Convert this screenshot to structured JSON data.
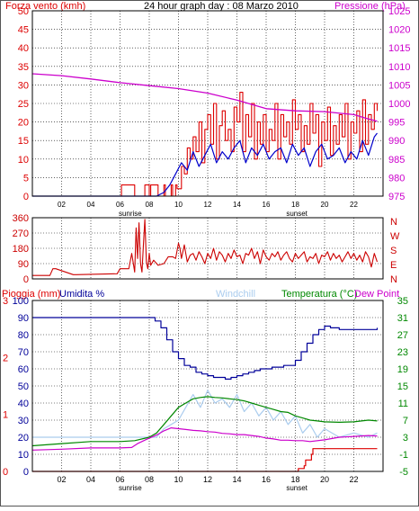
{
  "title": "24 hour graph day : 08 Marzo 2010",
  "colors": {
    "wind": "#dd0000",
    "gust": "#dd0000",
    "avgwind": "#0000cc",
    "pressure": "#cc00cc",
    "direction": "#cc0000",
    "rain": "#dd0000",
    "humidity": "#000099",
    "windchill": "#aaccee",
    "temperature": "#008800",
    "dewpoint": "#cc00cc",
    "grid": "#000000",
    "frame": "#000000",
    "background": "#ffffff"
  },
  "chart_data": [
    {
      "type": "line",
      "panel": "wind_pressure",
      "left_label": "Forza vento (kmh)",
      "right_label": "Pressione (hPa)",
      "x_ticks": [
        "02",
        "04",
        "06",
        "08",
        "10",
        "12",
        "14",
        "16",
        "18",
        "20",
        "22"
      ],
      "x_ticks_at": [
        2,
        4,
        6,
        8,
        10,
        12,
        14,
        16,
        18,
        20,
        22
      ],
      "xlim": [
        0,
        24
      ],
      "ylim": [
        0,
        50
      ],
      "y_ticks": [
        0,
        5,
        10,
        15,
        20,
        25,
        30,
        35,
        40,
        45,
        50
      ],
      "y2lim": [
        975,
        1025
      ],
      "y2_ticks": [
        975,
        980,
        985,
        990,
        995,
        1000,
        1005,
        1010,
        1015,
        1020,
        1025
      ],
      "markers": [
        {
          "label": "sunrise",
          "x": 6.7
        },
        {
          "label": "sunset",
          "x": 18.1
        }
      ],
      "series": [
        {
          "role": "gust",
          "axis": "left",
          "x": [
            0,
            6.0,
            6.1,
            6.9,
            7.0,
            7.6,
            7.7,
            8.0,
            8.1,
            8.5,
            8.6,
            9.0,
            9.1,
            9.5,
            9.6,
            9.8,
            9.9,
            10.2,
            10.4,
            10.6,
            10.8,
            11.0,
            11.2,
            11.4,
            11.6,
            11.8,
            12.0,
            12.2,
            12.4,
            12.6,
            12.8,
            13.0,
            13.2,
            13.4,
            13.6,
            13.8,
            14.0,
            14.2,
            14.4,
            14.6,
            14.8,
            15.0,
            15.2,
            15.4,
            15.6,
            15.8,
            16.0,
            16.2,
            16.4,
            16.6,
            16.8,
            17.0,
            17.2,
            17.4,
            17.6,
            17.8,
            18.0,
            18.2,
            18.4,
            18.6,
            18.8,
            19.0,
            19.2,
            19.4,
            19.6,
            19.8,
            20.0,
            20.2,
            20.4,
            20.6,
            20.8,
            21.0,
            21.2,
            21.4,
            21.6,
            21.8,
            22.0,
            22.2,
            22.4,
            22.6,
            22.8,
            23.0,
            23.2,
            23.4,
            23.6
          ],
          "y": [
            0,
            0,
            3,
            3,
            0,
            0,
            3,
            0,
            3,
            3,
            0,
            3,
            0,
            3,
            0,
            3,
            2,
            8,
            6,
            13,
            10,
            16,
            12,
            20,
            9,
            18,
            22,
            14,
            25,
            10,
            19,
            23,
            15,
            18,
            12,
            24,
            20,
            28,
            12,
            22,
            16,
            25,
            10,
            20,
            14,
            22,
            12,
            18,
            15,
            25,
            10,
            22,
            16,
            20,
            14,
            26,
            18,
            22,
            12,
            19,
            14,
            25,
            17,
            22,
            8,
            20,
            15,
            24,
            11,
            19,
            14,
            22,
            16,
            25,
            10,
            20,
            17,
            23,
            12,
            26,
            14,
            22,
            18,
            25,
            23
          ]
        },
        {
          "role": "average_wind",
          "axis": "left",
          "x": [
            0,
            8.5,
            9.0,
            9.4,
            9.8,
            10.2,
            10.6,
            11.0,
            11.4,
            11.8,
            12.2,
            12.6,
            13.0,
            13.4,
            13.8,
            14.2,
            14.6,
            15.0,
            15.4,
            15.8,
            16.2,
            16.6,
            17.0,
            17.4,
            17.8,
            18.2,
            18.6,
            19.0,
            19.4,
            19.8,
            20.2,
            20.6,
            21.0,
            21.4,
            21.8,
            22.2,
            22.6,
            23.0,
            23.4,
            23.6
          ],
          "y": [
            0,
            0,
            1,
            3,
            6,
            9,
            7,
            12,
            8,
            11,
            14,
            9,
            12,
            10,
            13,
            15,
            9,
            13,
            11,
            14,
            10,
            12,
            13,
            9,
            14,
            11,
            13,
            8,
            12,
            14,
            10,
            11,
            13,
            9,
            12,
            10,
            15,
            11,
            16,
            17
          ]
        },
        {
          "role": "pressure",
          "axis": "right",
          "x": [
            0,
            2,
            4,
            6,
            8,
            10,
            12,
            14,
            16,
            18,
            20,
            22,
            23,
            23.6
          ],
          "y": [
            1008,
            1007.5,
            1006.6,
            1005.6,
            1004.8,
            1004,
            1002.8,
            1000.9,
            998.6,
            998,
            997.8,
            997,
            995.8,
            995.2
          ]
        }
      ]
    },
    {
      "type": "line",
      "panel": "wind_direction",
      "right_labels": [
        "N",
        "W",
        "S",
        "E",
        "N"
      ],
      "ylim": [
        0,
        360
      ],
      "y_ticks": [
        0,
        90,
        180,
        270,
        360
      ],
      "tick_labels": [
        "0",
        "90",
        "180",
        "270",
        "360"
      ],
      "xlim": [
        0,
        24
      ],
      "series": [
        {
          "role": "direction",
          "x": [
            0,
            1.2,
            1.4,
            1.6,
            2.8,
            3.0,
            5.8,
            6.0,
            6.6,
            6.8,
            7.0,
            7.1,
            7.2,
            7.3,
            7.4,
            7.5,
            7.6,
            7.7,
            7.8,
            7.9,
            8.0,
            8.1,
            8.3,
            8.6,
            9.0,
            9.3,
            9.6,
            9.8,
            10.0,
            10.1,
            10.2,
            10.4,
            10.5,
            10.6,
            10.8,
            11.0,
            11.2,
            11.4,
            11.6,
            11.8,
            12.0,
            12.2,
            12.4,
            12.6,
            12.8,
            13.0,
            13.2,
            13.4,
            13.6,
            13.8,
            14.0,
            14.2,
            14.4,
            14.6,
            14.8,
            15.0,
            15.2,
            15.4,
            15.6,
            15.8,
            16.0,
            16.2,
            16.4,
            16.6,
            16.8,
            17.0,
            17.2,
            17.4,
            17.6,
            17.8,
            18.0,
            18.2,
            18.4,
            18.6,
            18.8,
            19.0,
            19.2,
            19.4,
            19.6,
            19.8,
            20.0,
            20.2,
            20.4,
            20.6,
            20.8,
            21.0,
            21.2,
            21.4,
            21.6,
            21.8,
            22.0,
            22.2,
            22.4,
            22.6,
            22.8,
            23.0,
            23.2,
            23.4,
            23.6
          ],
          "y": [
            20,
            20,
            60,
            60,
            25,
            25,
            30,
            60,
            60,
            150,
            40,
            300,
            120,
            330,
            90,
            40,
            200,
            350,
            100,
            60,
            150,
            80,
            110,
            80,
            90,
            130,
            130,
            120,
            210,
            180,
            120,
            200,
            150,
            100,
            140,
            150,
            110,
            160,
            130,
            90,
            150,
            120,
            180,
            110,
            160,
            140,
            100,
            150,
            120,
            170,
            130,
            140,
            90,
            150,
            140,
            180,
            120,
            160,
            90,
            170,
            130,
            110,
            150,
            130,
            160,
            110,
            140,
            160,
            120,
            100,
            150,
            120,
            140,
            160,
            100,
            130,
            120,
            150,
            90,
            140,
            130,
            160,
            110,
            150,
            120,
            140,
            100,
            130,
            160,
            120,
            150,
            110,
            140,
            100,
            160,
            130,
            70,
            150,
            100
          ]
        }
      ]
    },
    {
      "type": "line",
      "panel": "rain_humidity_temperature",
      "labels": {
        "rain": "Pioggia (mm)",
        "humidity": "Umidita %",
        "windchill": "Windchill",
        "temperature": "Temperatura (°C)",
        "dewpoint": "Dew Point"
      },
      "rain_ticks": [
        0,
        1,
        2,
        3
      ],
      "rain_ylim": [
        0,
        3
      ],
      "humidity_ticks": [
        0,
        10,
        20,
        30,
        40,
        50,
        60,
        70,
        80,
        90,
        100
      ],
      "humidity_ylim": [
        0,
        100
      ],
      "temp_ticks": [
        -5,
        -1,
        3,
        7,
        11,
        15,
        19,
        23,
        27,
        31,
        35
      ],
      "temp_ylim": [
        -5,
        35
      ],
      "xlim": [
        0,
        24
      ],
      "x_ticks": [
        "02",
        "04",
        "06",
        "08",
        "10",
        "12",
        "14",
        "16",
        "18",
        "20",
        "22"
      ],
      "x_ticks_at": [
        2,
        4,
        6,
        8,
        10,
        12,
        14,
        16,
        18,
        20,
        22
      ],
      "markers": [
        {
          "label": "sunrise",
          "x": 6.7
        },
        {
          "label": "sunset",
          "x": 18.1
        }
      ],
      "series": [
        {
          "role": "rain",
          "axis": "rain",
          "x": [
            0,
            18.1,
            18.2,
            18.6,
            18.7,
            19.1,
            19.2,
            23.6
          ],
          "y": [
            0,
            0,
            0.05,
            0.1,
            0.2,
            0.3,
            0.4,
            0.4
          ]
        },
        {
          "role": "humidity",
          "axis": "humidity",
          "x": [
            0,
            8.0,
            8.4,
            8.8,
            9.2,
            9.6,
            10.0,
            10.4,
            10.8,
            11.2,
            11.6,
            12.0,
            12.4,
            12.8,
            13.2,
            13.6,
            14.0,
            14.4,
            14.8,
            15.2,
            15.6,
            16.0,
            16.4,
            16.8,
            17.2,
            17.6,
            18.0,
            18.4,
            18.8,
            19.2,
            19.6,
            20.0,
            20.4,
            21.0,
            22.0,
            23.0,
            23.6
          ],
          "y": [
            90,
            90,
            88,
            84,
            77,
            70,
            66,
            62,
            61,
            58,
            57,
            56,
            55,
            55,
            54,
            55,
            56,
            57,
            58,
            59,
            60,
            60,
            61,
            61,
            62,
            62,
            65,
            70,
            75,
            80,
            83,
            85,
            84,
            83,
            83,
            83,
            84
          ]
        },
        {
          "role": "windchill",
          "axis": "temp",
          "x": [
            0,
            8.5,
            9.0,
            9.5,
            10.0,
            10.5,
            11.0,
            11.5,
            12.0,
            12.5,
            13.0,
            13.5,
            14.0,
            14.5,
            15.0,
            15.5,
            16.0,
            16.5,
            17.0,
            17.5,
            18.0,
            18.5,
            19.0,
            19.5,
            20.0,
            21.0,
            22.0,
            23.0,
            23.6
          ],
          "y": [
            3,
            3,
            5,
            6,
            7,
            10,
            13,
            10,
            14,
            11,
            12,
            10,
            13,
            9,
            11,
            8,
            10,
            7,
            9,
            6,
            8,
            4,
            6,
            3,
            5,
            3,
            4,
            3,
            4
          ]
        },
        {
          "role": "temperature",
          "axis": "temp",
          "x": [
            0,
            2,
            4,
            6,
            7,
            8,
            8.5,
            9.0,
            9.5,
            10.0,
            10.5,
            11.0,
            11.5,
            12.0,
            12.5,
            13.0,
            13.5,
            14.0,
            14.5,
            15.0,
            15.5,
            16.0,
            16.5,
            17.0,
            17.5,
            18.0,
            18.5,
            19.0,
            19.5,
            20.0,
            21.0,
            22.0,
            23.0,
            23.6
          ],
          "y": [
            1,
            1.5,
            2,
            2,
            2.2,
            3,
            4,
            6,
            8,
            10,
            11,
            12,
            12.3,
            12.5,
            12.3,
            12.2,
            12,
            11.8,
            11.5,
            11,
            10.5,
            10,
            9.5,
            9,
            8.8,
            8,
            7.5,
            7,
            6.8,
            6.6,
            6.5,
            6.6,
            7,
            6.8
          ]
        },
        {
          "role": "dewpoint",
          "axis": "temp",
          "x": [
            0,
            2,
            4,
            6,
            6.8,
            7.2,
            7.8,
            8.5,
            9.0,
            9.5,
            10.0,
            10.5,
            11.0,
            11.5,
            12.0,
            12.5,
            13.0,
            13.5,
            14.0,
            14.5,
            15.0,
            15.5,
            16.0,
            16.5,
            17.0,
            17.5,
            18.0,
            18.5,
            19.0,
            20.0,
            21.0,
            22.0,
            23.0,
            23.6
          ],
          "y": [
            0,
            0.2,
            0.5,
            0.5,
            0.6,
            1.5,
            2.5,
            3.5,
            4.5,
            5.2,
            5.0,
            4.8,
            4.6,
            4.5,
            4.3,
            4.2,
            3.9,
            3.8,
            3.6,
            3.6,
            3.4,
            3.2,
            2.8,
            2.6,
            2.3,
            2.3,
            2.2,
            2.2,
            2.0,
            2.4,
            3.0,
            3.2,
            3.4,
            3.3
          ]
        }
      ]
    }
  ]
}
